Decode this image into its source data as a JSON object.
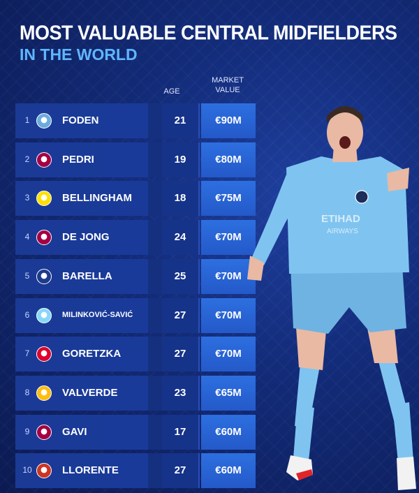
{
  "title": {
    "line1": "MOST VALUABLE CENTRAL MIDFIELDERS",
    "line2": "IN THE WORLD"
  },
  "columns": {
    "age": "AGE",
    "market_value_line1": "MARKET",
    "market_value_line2": "VALUE"
  },
  "rows": [
    {
      "rank": "1",
      "club": "Manchester City",
      "crest_color": "#6cabdd",
      "name": "FODEN",
      "age": "21",
      "value": "€90M"
    },
    {
      "rank": "2",
      "club": "Barcelona",
      "crest_color": "#a50044",
      "name": "PEDRI",
      "age": "19",
      "value": "€80M"
    },
    {
      "rank": "3",
      "club": "Borussia Dortmund",
      "crest_color": "#fde100",
      "name": "BELLINGHAM",
      "age": "18",
      "value": "€75M"
    },
    {
      "rank": "4",
      "club": "Barcelona",
      "crest_color": "#a50044",
      "name": "DE JONG",
      "age": "24",
      "value": "€70M"
    },
    {
      "rank": "5",
      "club": "Inter",
      "crest_color": "#1e3a8a",
      "name": "BARELLA",
      "age": "25",
      "value": "€70M"
    },
    {
      "rank": "6",
      "club": "Lazio",
      "crest_color": "#87d8f7",
      "name": "MILINKOVIĆ-SAVIĆ",
      "age": "27",
      "value": "€70M"
    },
    {
      "rank": "7",
      "club": "Bayern Munich",
      "crest_color": "#dc052d",
      "name": "GORETZKA",
      "age": "27",
      "value": "€70M"
    },
    {
      "rank": "8",
      "club": "Real Madrid",
      "crest_color": "#febe10",
      "name": "VALVERDE",
      "age": "23",
      "value": "€65M"
    },
    {
      "rank": "9",
      "club": "Barcelona",
      "crest_color": "#a50044",
      "name": "GAVI",
      "age": "17",
      "value": "€60M"
    },
    {
      "rank": "10",
      "club": "Atletico Madrid",
      "crest_color": "#cb3524",
      "name": "LLORENTE",
      "age": "27",
      "value": "€60M"
    }
  ],
  "player_shirt": {
    "sponsor_line1": "ETIHAD",
    "sponsor_line2": "AIRWAYS"
  },
  "colors": {
    "accent": "#5fb6ff",
    "value_cell": "#2d6fe0",
    "shirt": "#7fc4f0"
  }
}
